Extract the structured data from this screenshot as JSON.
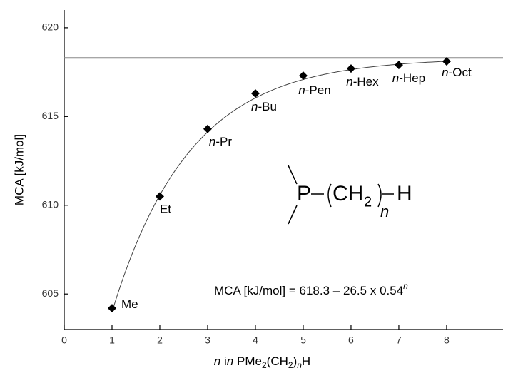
{
  "chart_data": {
    "type": "scatter",
    "x_label": "n in PMe2(CH2)nH",
    "y_label": "MCA [kJ/mol]",
    "x": [
      1,
      2,
      3,
      4,
      5,
      6,
      7,
      8
    ],
    "values": [
      604.2,
      610.5,
      614.3,
      616.3,
      617.3,
      617.7,
      617.9,
      618.1
    ],
    "labels": [
      "Me",
      "Et",
      "n-Pr",
      "n-Bu",
      "n-Pen",
      "n-Hex",
      "n-Hep",
      "n-Oct"
    ],
    "color": "#000000",
    "xlim": [
      0,
      9.18
    ],
    "ylim": [
      603,
      621
    ],
    "xticks": [
      0,
      1,
      2,
      3,
      4,
      5,
      6,
      7,
      8
    ],
    "yticks": [
      605,
      610,
      615,
      620
    ],
    "equation": {
      "lhs": "MCA [kJ/mol] =",
      "a": 618.3,
      "minus": "–",
      "b": 26.5,
      "times": "x",
      "c": 0.54,
      "exponent": "n"
    },
    "structure": {
      "atom": "P",
      "group": "CH",
      "subscript": "2",
      "repeat": "n",
      "end": "H"
    }
  }
}
